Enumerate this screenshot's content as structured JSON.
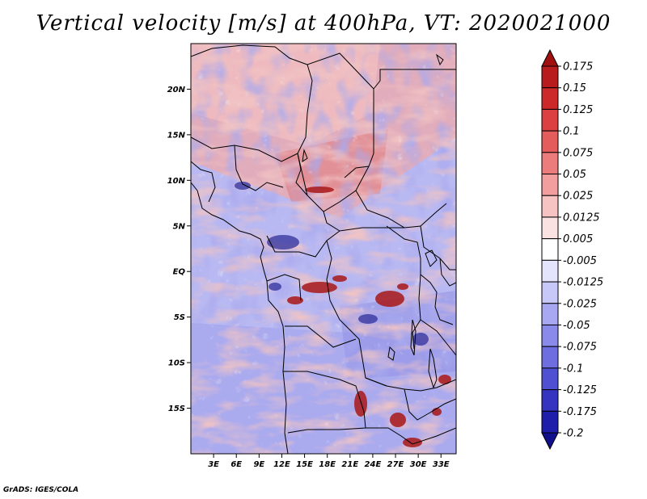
{
  "title": "Vertical velocity [m/s] at 400hPa, VT: 2020021000",
  "credit": "GrADS: IGES/COLA",
  "lat_labels": [
    {
      "lat": 20,
      "text": "20N"
    },
    {
      "lat": 15,
      "text": "15N"
    },
    {
      "lat": 10,
      "text": "10N"
    },
    {
      "lat": 5,
      "text": "5N"
    },
    {
      "lat": 0,
      "text": "EQ"
    },
    {
      "lat": -5,
      "text": "5S"
    },
    {
      "lat": -10,
      "text": "10S"
    },
    {
      "lat": -15,
      "text": "15S"
    }
  ],
  "lon_labels": [
    {
      "lon": 3,
      "text": "3E"
    },
    {
      "lon": 6,
      "text": "6E"
    },
    {
      "lon": 9,
      "text": "9E"
    },
    {
      "lon": 12,
      "text": "12E"
    },
    {
      "lon": 15,
      "text": "15E"
    },
    {
      "lon": 18,
      "text": "18E"
    },
    {
      "lon": 21,
      "text": "21E"
    },
    {
      "lon": 24,
      "text": "24E"
    },
    {
      "lon": 27,
      "text": "27E"
    },
    {
      "lon": 30,
      "text": "30E"
    },
    {
      "lon": 33,
      "text": "33E"
    }
  ],
  "map_extent": {
    "lon_min": 0,
    "lon_max": 35,
    "lat_min": -20,
    "lat_max": 25
  },
  "colorbar": {
    "labels": [
      "0.175",
      "0.15",
      "0.125",
      "0.1",
      "0.075",
      "0.05",
      "0.025",
      "0.0125",
      "0.005",
      "-0.005",
      "-0.0125",
      "-0.025",
      "-0.05",
      "-0.075",
      "-0.1",
      "-0.125",
      "-0.175",
      "-0.2"
    ],
    "colors": [
      "#a01010",
      "#b81c1c",
      "#cc2a2a",
      "#dc4040",
      "#e45c5c",
      "#ec7c7c",
      "#f29e9e",
      "#f7c2c2",
      "#fbe2e2",
      "#ffffff",
      "#e4e4fc",
      "#c8c8f8",
      "#a8a8f2",
      "#8a8aea",
      "#6e6ee0",
      "#5050d2",
      "#3434c0",
      "#1e1eaa",
      "#10108c"
    ]
  }
}
